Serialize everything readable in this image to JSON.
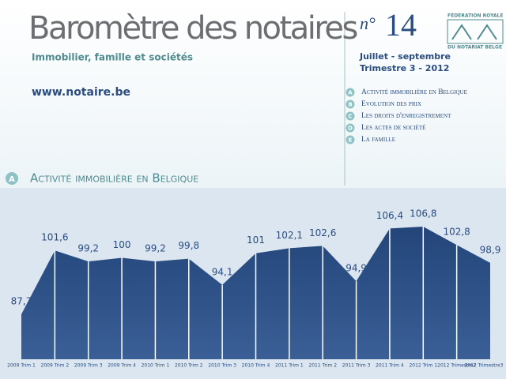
{
  "header": {
    "title": "Baromètre des notaires",
    "subtitle": "Immobilier, famille et sociétés",
    "website": "www.notaire.be",
    "issue_prefix": "n°",
    "issue_number": "14",
    "period": "Juillet - septembre",
    "quarter": "Trimestre 3 - 2012",
    "federation_line1": "FÉDÉRATION ROYALE",
    "federation_line2": "DU NOTARIAT BELGE"
  },
  "contents": [
    {
      "letter": "A",
      "label": "Activité immobilière en Belgique"
    },
    {
      "letter": "B",
      "label": "Evolution des prix"
    },
    {
      "letter": "C",
      "label": "Les droits d'enregistrement"
    },
    {
      "letter": "D",
      "label": "Les actes de société"
    },
    {
      "letter": "E",
      "label": "La famille"
    }
  ],
  "section": {
    "letter": "A",
    "title": "Activité immobilière en Belgique"
  },
  "chart_data": {
    "type": "area",
    "color": "#2b4c80",
    "categories": [
      "2009 Trim 1",
      "2009 Trim 2",
      "2009 Trim 3",
      "2009 Trim 4",
      "2010 Trim 1",
      "2010 Trim 2",
      "2010 Trim 3",
      "2010 Trim 4",
      "2011 Trim 1",
      "2011 Trim 2",
      "2011 Trim 3",
      "2011 Trim 4",
      "2012 Trim 1",
      "2012 Trimestre2",
      "2012 Trimestre3"
    ],
    "values": [
      87.7,
      101.6,
      99.2,
      100,
      99.2,
      99.8,
      94.1,
      101,
      102.1,
      102.6,
      94.9,
      106.4,
      106.8,
      102.8,
      98.9
    ],
    "value_labels": [
      "87,7",
      "101,6",
      "99,2",
      "100",
      "99,2",
      "99,8",
      "94,1",
      "101",
      "102,1",
      "102,6",
      "94,9",
      "106,4",
      "106,8",
      "102,8",
      "98,9"
    ]
  }
}
